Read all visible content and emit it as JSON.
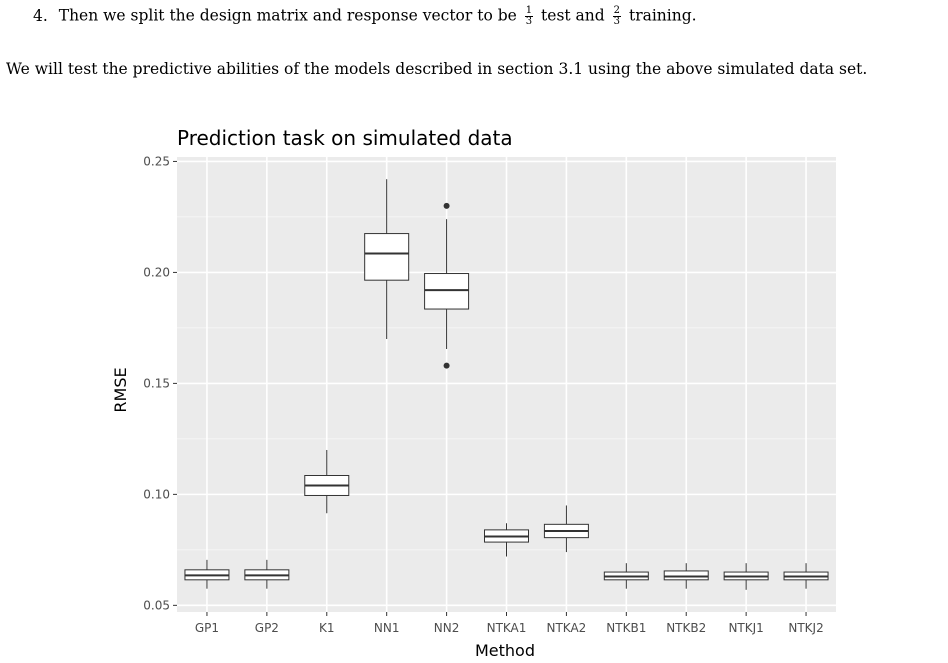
{
  "list_item": {
    "number": "4.",
    "text_before": "Then we split the design matrix and response vector to be",
    "frac1": {
      "num": "1",
      "den": "3"
    },
    "text_mid": "test and",
    "frac2": {
      "num": "2",
      "den": "3"
    },
    "text_after": "training."
  },
  "paragraph": "We will test the predictive abilities of the models described in section 3.1 using the above simulated data set.",
  "chart_data": {
    "type": "box",
    "title": "Prediction task on simulated data",
    "xlabel": "Method",
    "ylabel": "RMSE",
    "ylim": [
      0.047,
      0.252
    ],
    "yticks": [
      0.05,
      0.1,
      0.15,
      0.2,
      0.25
    ],
    "ytick_labels": [
      "0.05",
      "0.10",
      "0.15",
      "0.20",
      "0.25"
    ],
    "grid": true,
    "panel_background": "#ebebeb",
    "categories": [
      "GP1",
      "GP2",
      "K1",
      "NN1",
      "NN2",
      "NTKA1",
      "NTKA2",
      "NTKB1",
      "NTKB2",
      "NTKJ1",
      "NTKJ2"
    ],
    "boxes": [
      {
        "whisker_low": 0.0575,
        "q1": 0.0615,
        "median": 0.0635,
        "q3": 0.066,
        "whisker_high": 0.0705,
        "outliers": []
      },
      {
        "whisker_low": 0.0575,
        "q1": 0.0615,
        "median": 0.0635,
        "q3": 0.066,
        "whisker_high": 0.0705,
        "outliers": []
      },
      {
        "whisker_low": 0.0915,
        "q1": 0.0995,
        "median": 0.104,
        "q3": 0.1085,
        "whisker_high": 0.12,
        "outliers": []
      },
      {
        "whisker_low": 0.17,
        "q1": 0.1965,
        "median": 0.2085,
        "q3": 0.2175,
        "whisker_high": 0.242,
        "outliers": []
      },
      {
        "whisker_low": 0.1655,
        "q1": 0.1835,
        "median": 0.192,
        "q3": 0.1995,
        "whisker_high": 0.224,
        "outliers": [
          0.23,
          0.158
        ]
      },
      {
        "whisker_low": 0.072,
        "q1": 0.0785,
        "median": 0.081,
        "q3": 0.084,
        "whisker_high": 0.087,
        "outliers": []
      },
      {
        "whisker_low": 0.074,
        "q1": 0.0805,
        "median": 0.0835,
        "q3": 0.0865,
        "whisker_high": 0.095,
        "outliers": []
      },
      {
        "whisker_low": 0.0575,
        "q1": 0.0615,
        "median": 0.063,
        "q3": 0.065,
        "whisker_high": 0.069,
        "outliers": []
      },
      {
        "whisker_low": 0.0575,
        "q1": 0.0615,
        "median": 0.063,
        "q3": 0.0655,
        "whisker_high": 0.069,
        "outliers": []
      },
      {
        "whisker_low": 0.057,
        "q1": 0.0615,
        "median": 0.063,
        "q3": 0.065,
        "whisker_high": 0.069,
        "outliers": []
      },
      {
        "whisker_low": 0.0575,
        "q1": 0.0615,
        "median": 0.063,
        "q3": 0.065,
        "whisker_high": 0.069,
        "outliers": []
      }
    ]
  }
}
